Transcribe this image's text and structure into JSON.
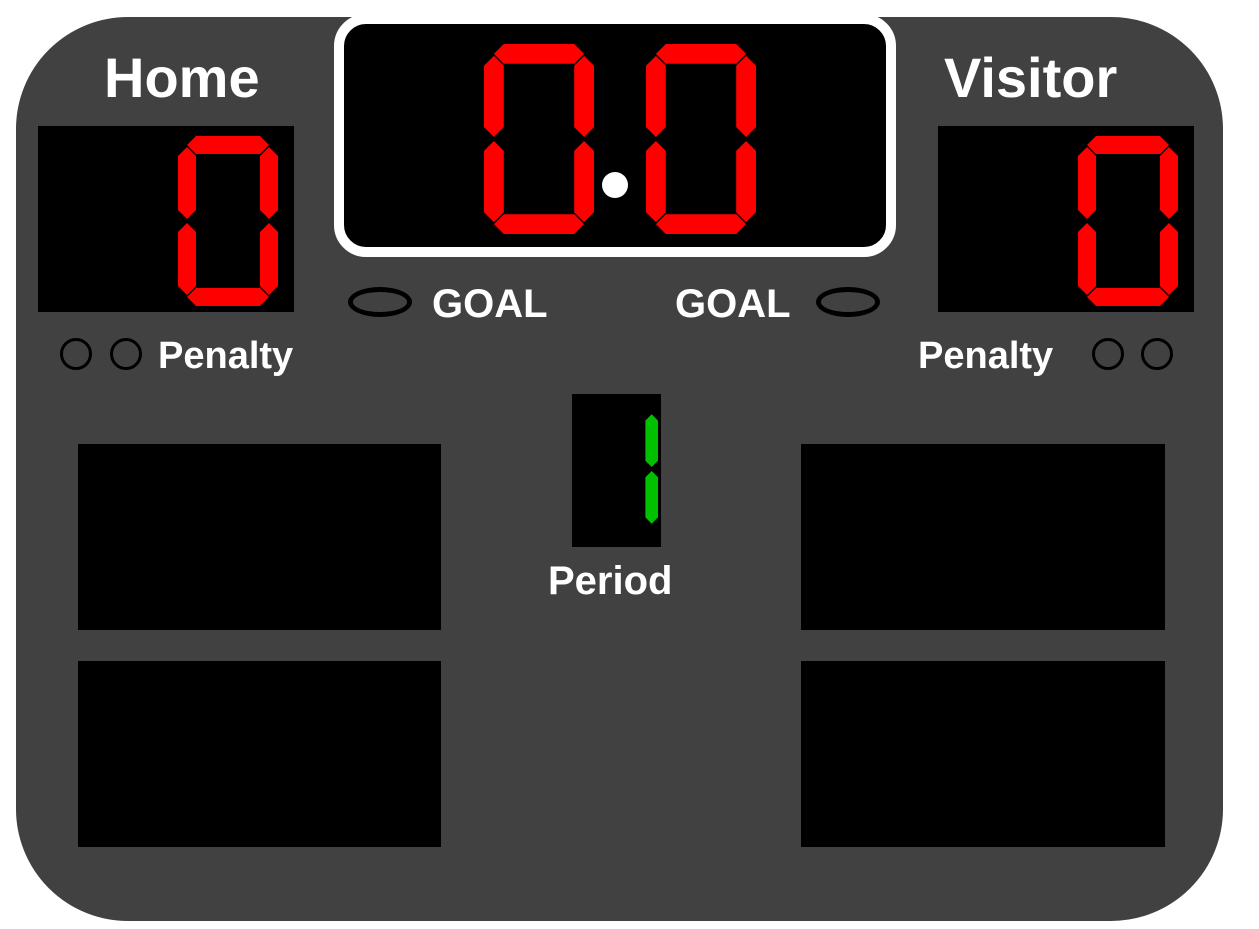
{
  "scoreboard": {
    "home_label": "Home",
    "visitor_label": "Visitor",
    "home_score": "0",
    "visitor_score": "0",
    "clock_minutes": "0",
    "clock_seconds": "0",
    "goal_label_home": "GOAL",
    "goal_label_visitor": "GOAL",
    "penalty_label_home": "Penalty",
    "penalty_label_visitor": "Penalty",
    "period": "1",
    "period_label": "Period",
    "home_goal_lamp_on": false,
    "visitor_goal_lamp_on": false,
    "home_penalty_lamps": [
      false,
      false
    ],
    "visitor_penalty_lamps": [
      false,
      false
    ]
  },
  "colors": {
    "board": "#414141",
    "panel": "#000000",
    "score_digit": "#ff0000",
    "period_digit": "#00c000",
    "label": "#ffffff"
  }
}
